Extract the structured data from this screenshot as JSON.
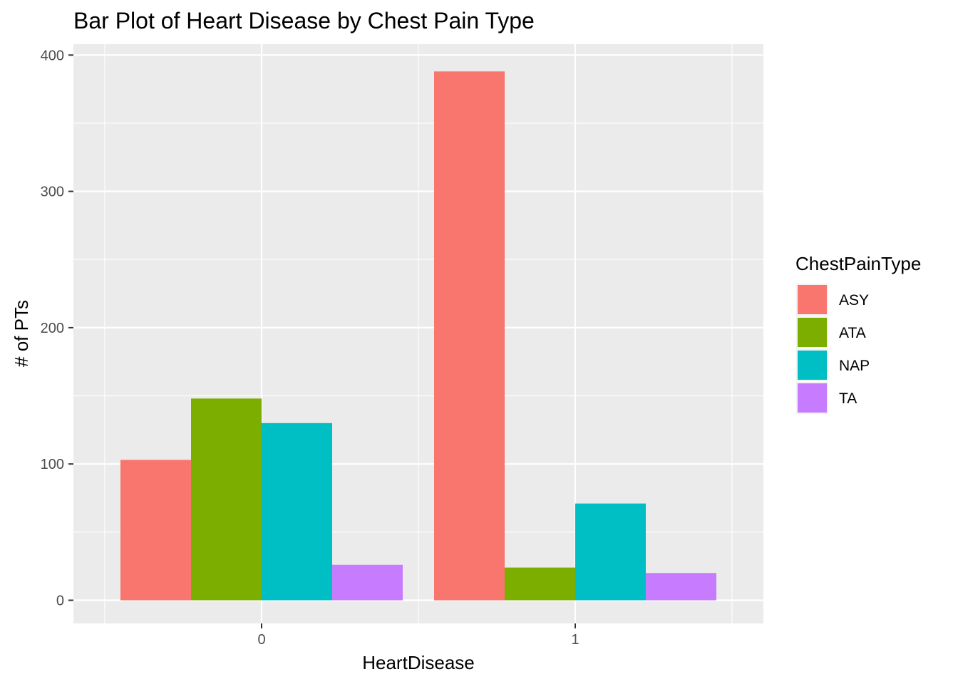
{
  "chart_data": {
    "type": "bar",
    "title": "Bar Plot of Heart Disease by Chest Pain Type",
    "xlabel": "HeartDisease",
    "ylabel": "# of PTs",
    "categories": [
      "0",
      "1"
    ],
    "series": [
      {
        "name": "ASY",
        "values": [
          103,
          388
        ],
        "color": "#F8766D"
      },
      {
        "name": "ATA",
        "values": [
          148,
          24
        ],
        "color": "#7CAE00"
      },
      {
        "name": "NAP",
        "values": [
          130,
          71
        ],
        "color": "#00BFC4"
      },
      {
        "name": "TA",
        "values": [
          26,
          20
        ],
        "color": "#C77CFF"
      }
    ],
    "y_ticks": [
      "0",
      "100",
      "200",
      "300",
      "400"
    ],
    "ylim": [
      -17,
      408
    ],
    "grid": true,
    "panel_color": "#EBEBEB",
    "legend": {
      "title": "ChestPainType",
      "position": "right"
    }
  }
}
